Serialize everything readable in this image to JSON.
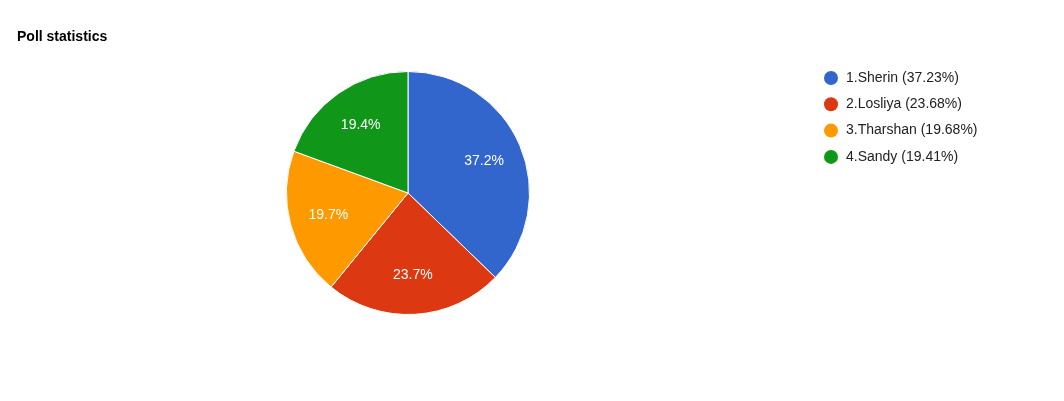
{
  "chart_data": {
    "type": "pie",
    "title": "Poll statistics",
    "categories": [
      "1.Sherin (37.23%)",
      "2.Losliya (23.68%)",
      "3.Tharshan (19.68%)",
      "4.Sandy (19.41%)"
    ],
    "values": [
      37.23,
      23.68,
      19.68,
      19.41
    ],
    "colors": [
      "#3366cc",
      "#dc3912",
      "#ff9900",
      "#109618"
    ],
    "value_labels": [
      "37.2%",
      "23.7%",
      "19.7%",
      "19.4%"
    ],
    "legend": "top right"
  }
}
